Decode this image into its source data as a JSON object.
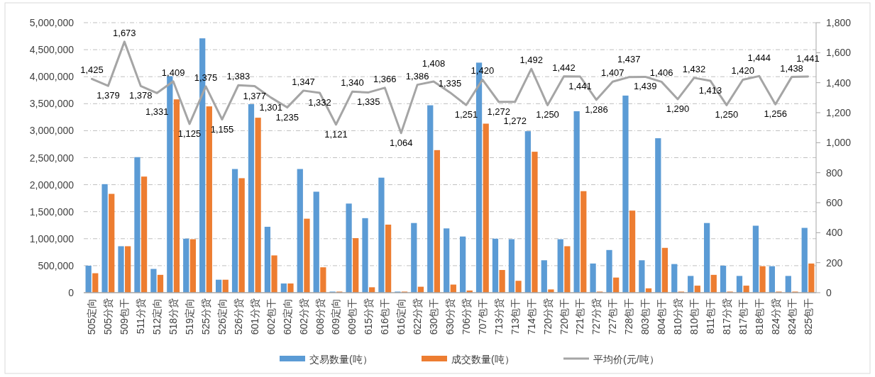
{
  "chart_data": {
    "type": "bar",
    "categories": [
      "505定向",
      "505分贷",
      "509包干",
      "511分贷",
      "512定向",
      "518分贷",
      "519定向",
      "525分贷",
      "526定向",
      "526分贷",
      "601分贷",
      "602包干",
      "602定向",
      "602分贷",
      "608分贷",
      "609定向",
      "609包干",
      "615分贷",
      "616包干",
      "616定向",
      "622分贷",
      "630包干",
      "630分贷",
      "706分贷",
      "707包干",
      "713分贷",
      "713包干",
      "714包干",
      "720分贷",
      "720包干",
      "721包干",
      "727分贷",
      "727包干",
      "728包干",
      "803包干",
      "804包干",
      "810分贷",
      "810包干",
      "811包干",
      "817分贷",
      "817包干",
      "818包干",
      "824分贷",
      "824包干",
      "825包干"
    ],
    "series": [
      {
        "name": "交易数量(吨）",
        "color": "#5b9bd5",
        "values": [
          500000,
          2010000,
          860000,
          2510000,
          440000,
          4010000,
          1000000,
          4710000,
          240000,
          2290000,
          3490000,
          1220000,
          170000,
          2290000,
          1870000,
          20000,
          1650000,
          1380000,
          2130000,
          20000,
          1290000,
          3470000,
          1190000,
          1040000,
          4260000,
          1000000,
          990000,
          2990000,
          600000,
          990000,
          3360000,
          540000,
          790000,
          3650000,
          600000,
          2860000,
          530000,
          310000,
          1290000,
          500000,
          310000,
          1240000,
          490000,
          310000,
          1200000
        ]
      },
      {
        "name": "成交数量(吨）",
        "color": "#ed7d31",
        "values": [
          360000,
          1830000,
          860000,
          2150000,
          330000,
          3580000,
          990000,
          3450000,
          240000,
          2120000,
          3240000,
          690000,
          170000,
          1370000,
          470000,
          20000,
          1010000,
          100000,
          1260000,
          20000,
          110000,
          2640000,
          150000,
          40000,
          3130000,
          420000,
          220000,
          2610000,
          60000,
          860000,
          1880000,
          20000,
          280000,
          1520000,
          80000,
          830000,
          20000,
          130000,
          330000,
          20000,
          130000,
          490000,
          20000,
          20000,
          540000
        ]
      },
      {
        "name": "平均价(元/吨）",
        "color": "#a5a5a5",
        "type": "line",
        "axis": "y2",
        "values": [
          1425,
          1379,
          1673,
          1378,
          1331,
          1409,
          1125,
          1375,
          1155,
          1383,
          1377,
          1301,
          1235,
          1347,
          1332,
          1121,
          1340,
          1335,
          1366,
          1064,
          1386,
          1408,
          1335,
          1251,
          1420,
          1272,
          1272,
          1492,
          1250,
          1442,
          1441,
          1286,
          1407,
          1437,
          1439,
          1406,
          1290,
          1432,
          1413,
          1250,
          1420,
          1444,
          1256,
          1438,
          1441
        ],
        "value_labels": [
          "1,425",
          "1,379",
          "1,673",
          "1,378",
          "1,331",
          "1,409",
          "1,125",
          "1,375",
          "1,155",
          "1,383",
          "1,377",
          "1,301",
          "1,235",
          "1,347",
          "1,332",
          "1,121",
          "1,340",
          "1,335",
          "1,366",
          "1,064",
          "1,386",
          "1,408",
          "1,335",
          "1,251",
          "1,420",
          "1,272",
          "1,272",
          "1,492",
          "1,250",
          "1,442",
          "1,441",
          "1,286",
          "1,407",
          "1,437",
          "1,439",
          "1,406",
          "1,290",
          "1,432",
          "1,413",
          "1,250",
          "1,420",
          "1,444",
          "1,256",
          "1,438",
          "1,441"
        ]
      }
    ],
    "ylim": [
      0,
      5000000
    ],
    "yticks": [
      {
        "value": 0,
        "label": "0"
      },
      {
        "value": 500000,
        "label": "500,000"
      },
      {
        "value": 1000000,
        "label": "1,000,000"
      },
      {
        "value": 1500000,
        "label": "1,500,000"
      },
      {
        "value": 2000000,
        "label": "2,000,000"
      },
      {
        "value": 2500000,
        "label": "2,500,000"
      },
      {
        "value": 3000000,
        "label": "3,000,000"
      },
      {
        "value": 3500000,
        "label": "3,500,000"
      },
      {
        "value": 4000000,
        "label": "4,000,000"
      },
      {
        "value": 4500000,
        "label": "4,500,000"
      },
      {
        "value": 5000000,
        "label": "5,000,000"
      }
    ],
    "y2lim": [
      0,
      1800
    ],
    "y2ticks": [
      {
        "value": 0,
        "label": "0"
      },
      {
        "value": 200,
        "label": "200"
      },
      {
        "value": 400,
        "label": "400"
      },
      {
        "value": 600,
        "label": "600"
      },
      {
        "value": 800,
        "label": "800"
      },
      {
        "value": 1000,
        "label": "1,000"
      },
      {
        "value": 1200,
        "label": "1,200"
      },
      {
        "value": 1400,
        "label": "1,400"
      },
      {
        "value": 1600,
        "label": "1,600"
      },
      {
        "value": 1800,
        "label": "1,800"
      }
    ],
    "grid": "y",
    "legend": "bottom"
  }
}
